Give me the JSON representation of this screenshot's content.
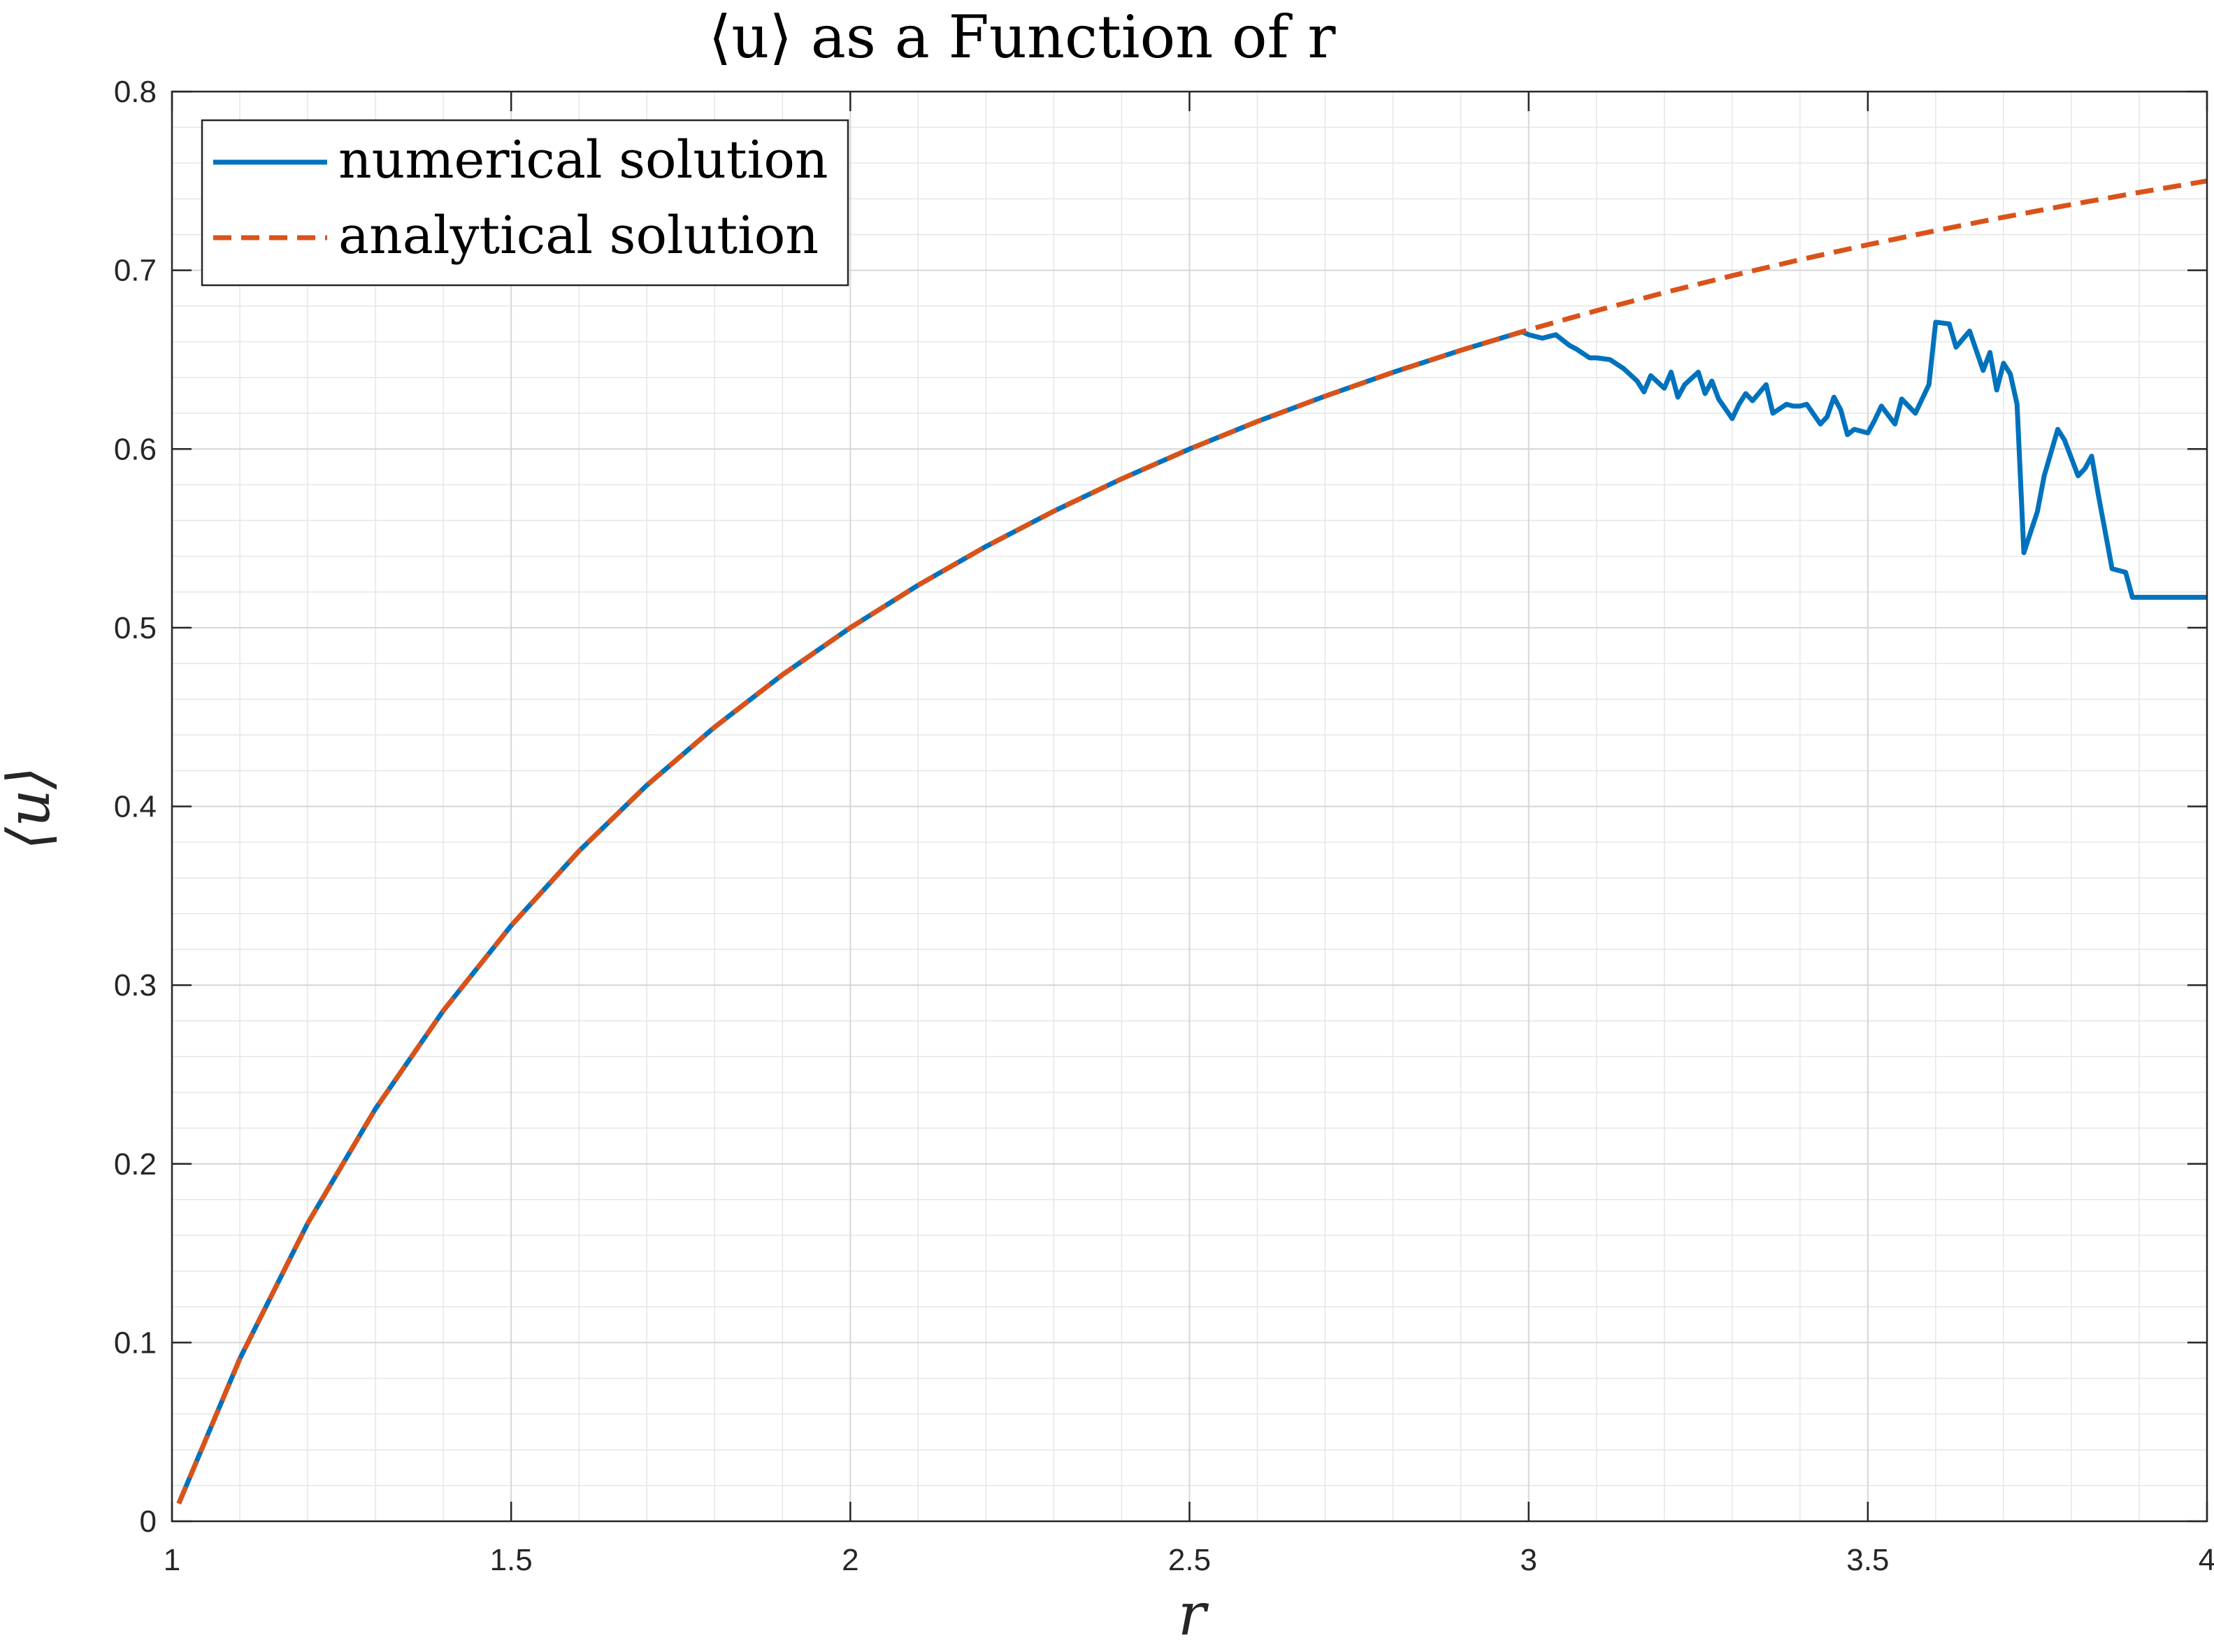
{
  "chart_data": {
    "type": "line",
    "title": "⟨u⟩ as a Function of r",
    "xlabel": "r",
    "ylabel": "⟨u⟩",
    "xlim": [
      1,
      4
    ],
    "ylim": [
      0,
      0.8
    ],
    "xticks": [
      1,
      1.5,
      2,
      2.5,
      3,
      3.5,
      4
    ],
    "xtick_labels": [
      "1",
      "1.5",
      "2",
      "2.5",
      "3",
      "3.5",
      "4"
    ],
    "yticks": [
      0,
      0.1,
      0.2,
      0.3,
      0.4,
      0.5,
      0.6,
      0.7,
      0.8
    ],
    "ytick_labels": [
      "0",
      "0.1",
      "0.2",
      "0.3",
      "0.4",
      "0.5",
      "0.6",
      "0.7",
      "0.8"
    ],
    "grid": true,
    "minor_grid": true,
    "legend_position": "top-left",
    "series": [
      {
        "name": "numerical solution",
        "color": "#0072BD",
        "style": "solid",
        "x": [
          1.01,
          1.1,
          1.2,
          1.3,
          1.4,
          1.5,
          1.6,
          1.7,
          1.8,
          1.9,
          2.0,
          2.1,
          2.2,
          2.3,
          2.4,
          2.5,
          2.6,
          2.7,
          2.8,
          2.9,
          2.99,
          3.0,
          3.02,
          3.04,
          3.06,
          3.07,
          3.09,
          3.1,
          3.12,
          3.14,
          3.16,
          3.17,
          3.18,
          3.2,
          3.21,
          3.22,
          3.23,
          3.25,
          3.26,
          3.27,
          3.28,
          3.3,
          3.31,
          3.32,
          3.33,
          3.35,
          3.36,
          3.38,
          3.39,
          3.4,
          3.41,
          3.43,
          3.44,
          3.45,
          3.46,
          3.47,
          3.48,
          3.5,
          3.51,
          3.52,
          3.54,
          3.55,
          3.57,
          3.59,
          3.6,
          3.62,
          3.63,
          3.65,
          3.67,
          3.68,
          3.69,
          3.7,
          3.71,
          3.72,
          3.73,
          3.75,
          3.76,
          3.78,
          3.79,
          3.81,
          3.82,
          3.83,
          3.84,
          3.86,
          3.88,
          3.89,
          3.9,
          3.92,
          3.94,
          3.96,
          3.98,
          4.0
        ],
        "y": [
          0.0099,
          0.0909,
          0.1667,
          0.2308,
          0.2857,
          0.3333,
          0.375,
          0.4118,
          0.4444,
          0.4737,
          0.5,
          0.5238,
          0.5455,
          0.5652,
          0.5833,
          0.6,
          0.6154,
          0.6296,
          0.6429,
          0.6552,
          0.6656,
          0.664,
          0.662,
          0.664,
          0.658,
          0.656,
          0.651,
          0.651,
          0.65,
          0.645,
          0.638,
          0.632,
          0.641,
          0.634,
          0.643,
          0.629,
          0.636,
          0.643,
          0.631,
          0.638,
          0.628,
          0.617,
          0.625,
          0.631,
          0.627,
          0.636,
          0.62,
          0.625,
          0.624,
          0.624,
          0.625,
          0.614,
          0.618,
          0.629,
          0.622,
          0.608,
          0.611,
          0.609,
          0.616,
          0.624,
          0.614,
          0.628,
          0.62,
          0.636,
          0.671,
          0.67,
          0.657,
          0.666,
          0.644,
          0.654,
          0.633,
          0.648,
          0.642,
          0.625,
          0.542,
          0.565,
          0.585,
          0.611,
          0.605,
          0.585,
          0.589,
          0.596,
          0.574,
          0.533,
          0.531,
          0.517,
          0.517,
          0.517,
          0.517,
          0.517,
          0.517,
          0.517
        ]
      },
      {
        "name": "analytical solution",
        "color": "#D95319",
        "style": "dashed",
        "x": [
          1.01,
          1.1,
          1.2,
          1.3,
          1.4,
          1.5,
          1.6,
          1.7,
          1.8,
          1.9,
          2.0,
          2.1,
          2.2,
          2.3,
          2.4,
          2.5,
          2.6,
          2.7,
          2.8,
          2.9,
          3.0,
          3.1,
          3.2,
          3.3,
          3.4,
          3.5,
          3.6,
          3.7,
          3.8,
          3.9,
          4.0
        ],
        "y": [
          0.0099,
          0.0909,
          0.1667,
          0.2308,
          0.2857,
          0.3333,
          0.375,
          0.4118,
          0.4444,
          0.4737,
          0.5,
          0.5238,
          0.5455,
          0.5652,
          0.5833,
          0.6,
          0.6154,
          0.6296,
          0.6429,
          0.6552,
          0.6667,
          0.6774,
          0.6875,
          0.697,
          0.7059,
          0.7143,
          0.7222,
          0.7297,
          0.7368,
          0.7436,
          0.75
        ]
      }
    ]
  }
}
